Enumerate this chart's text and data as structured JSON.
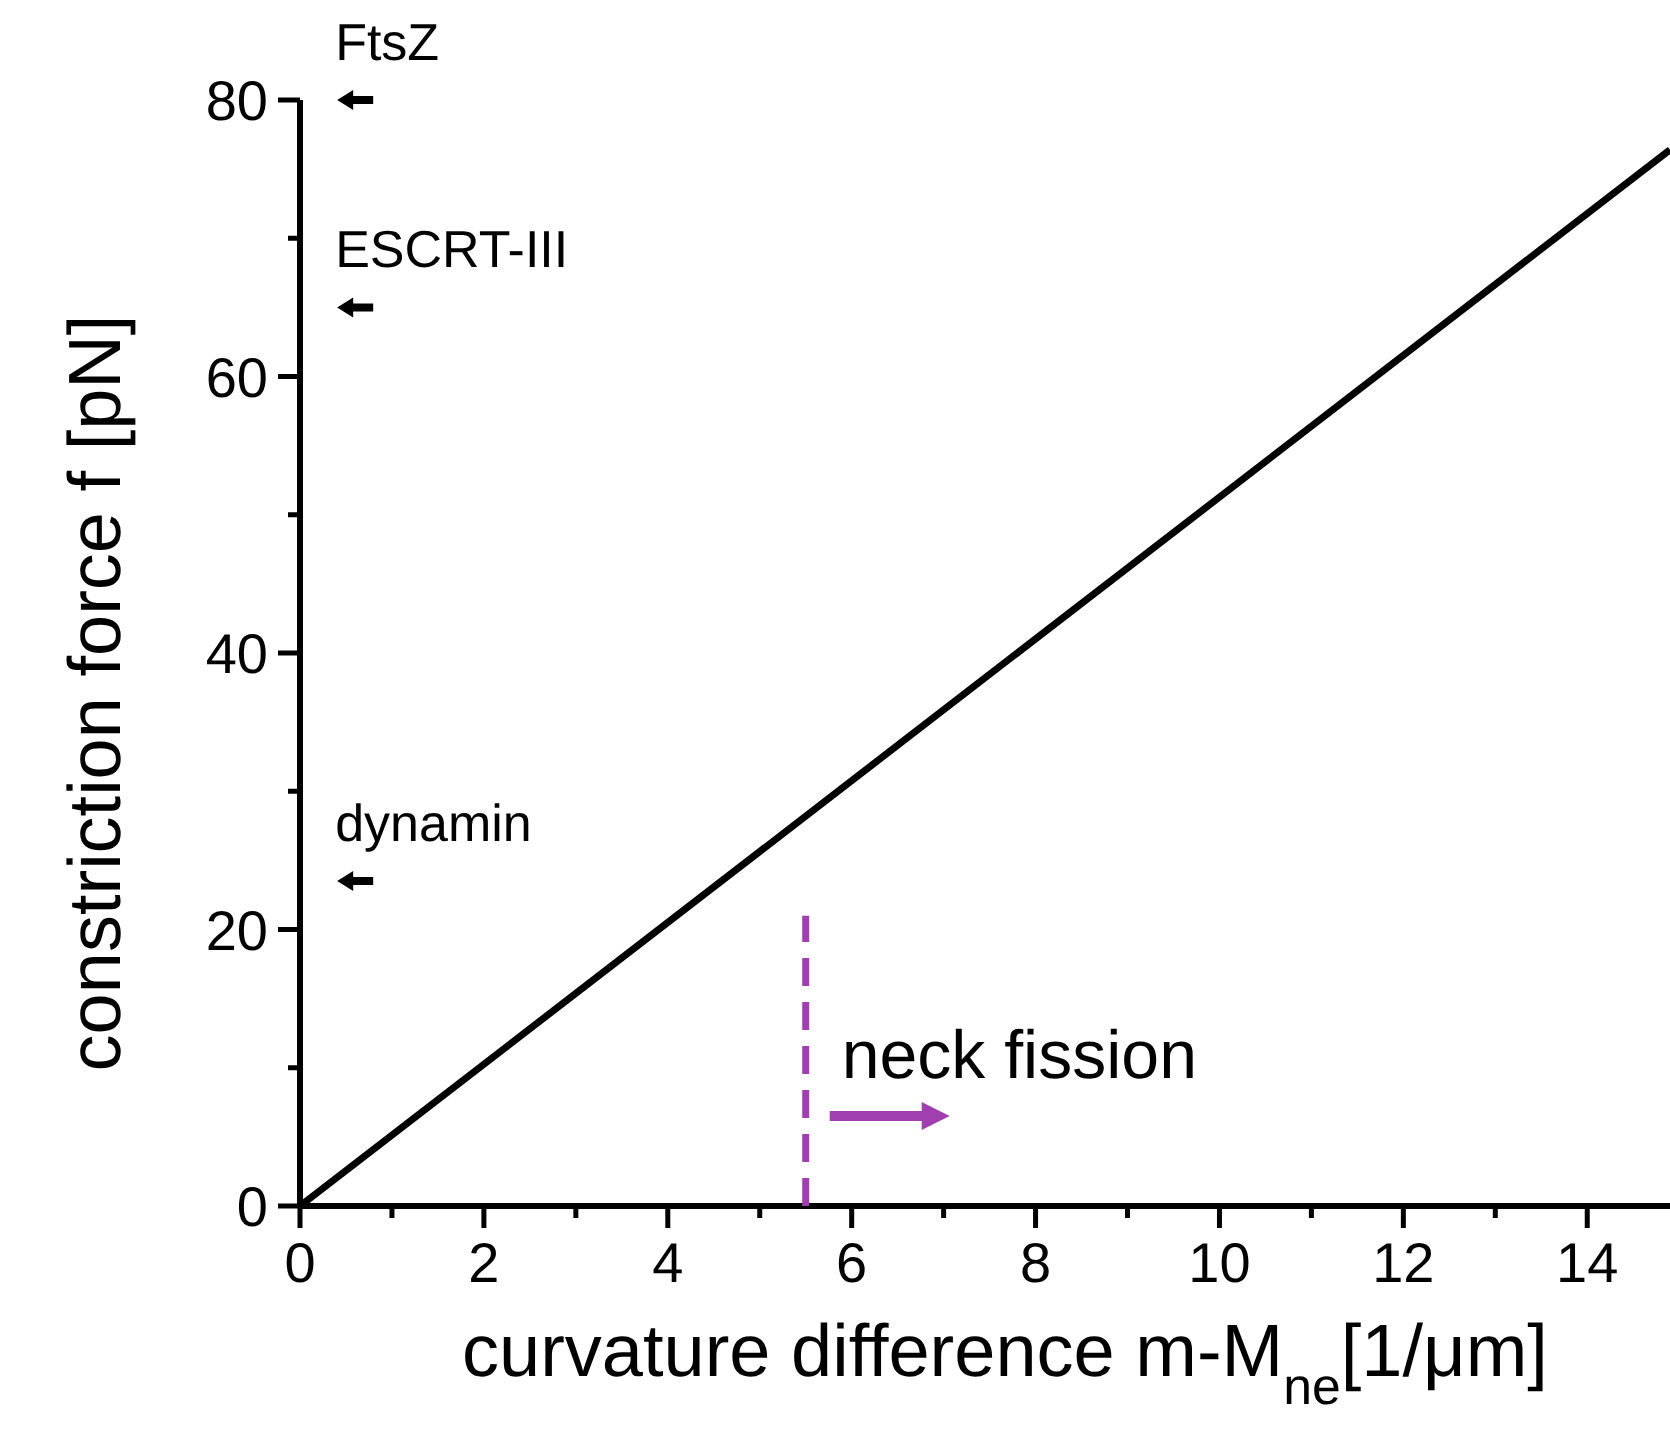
{
  "chart_data": {
    "type": "line",
    "xlabel": "curvature difference m-M$_{ne}$[1/μm]",
    "ylabel": "constriction force f [pN]",
    "xlim": [
      0,
      14.9
    ],
    "ylim": [
      0,
      80
    ],
    "xticks": [
      0,
      {
        "value": 1,
        "label": null
      },
      2,
      {
        "value": 3,
        "label": null
      },
      4,
      {
        "value": 5,
        "label": null
      },
      6,
      {
        "value": 7,
        "label": null
      },
      8,
      {
        "value": 9,
        "label": null
      },
      10,
      {
        "value": 11,
        "label": null
      },
      12,
      {
        "value": 13,
        "label": null
      },
      14
    ],
    "yticks": [
      0,
      {
        "value": 10,
        "label": null
      },
      20,
      {
        "value": 30,
        "label": null
      },
      40,
      {
        "value": 50,
        "label": null
      },
      60,
      {
        "value": 70,
        "label": null
      },
      80
    ],
    "series": [
      {
        "color": "#000000",
        "x": [
          0,
          14.9
        ],
        "values": [
          0,
          76.4
        ],
        "line_style": "solid"
      },
      {
        "color": "#a040b0",
        "x": [
          5.5,
          5.5
        ],
        "values": [
          0,
          21
        ],
        "line_style": "dashed"
      },
      {
        "type": "scatter",
        "name": "FtsZ",
        "color": "#000000",
        "x": [
          0.6
        ],
        "values": [
          80
        ]
      },
      {
        "type": "scatter",
        "name": "ESCRT-III",
        "color": "#000000",
        "x": [
          0.6
        ],
        "values": [
          65
        ]
      },
      {
        "type": "scatter",
        "name": "dynamin",
        "color": "#000000",
        "x": [
          0.6
        ],
        "values": [
          23.5
        ]
      }
    ],
    "annotations": [
      "neck fission"
    ],
    "grid": false
  }
}
